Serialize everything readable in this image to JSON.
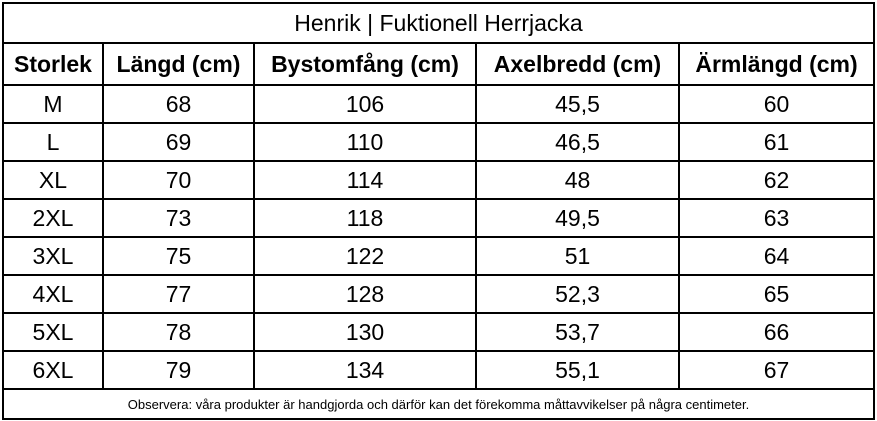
{
  "title": "Henrik | Fuktionell Herrjacka",
  "table": {
    "header": [
      "Storlek",
      "Längd (cm)",
      "Bystomfång (cm)",
      "Axelbredd (cm)",
      "Ärmlängd (cm)"
    ],
    "rows": [
      [
        "M",
        "68",
        "106",
        "45,5",
        "60"
      ],
      [
        "L",
        "69",
        "110",
        "46,5",
        "61"
      ],
      [
        "XL",
        "70",
        "114",
        "48",
        "62"
      ],
      [
        "2XL",
        "73",
        "118",
        "49,5",
        "63"
      ],
      [
        "3XL",
        "75",
        "122",
        "51",
        "64"
      ],
      [
        "4XL",
        "77",
        "128",
        "52,3",
        "65"
      ],
      [
        "5XL",
        "78",
        "130",
        "53,7",
        "66"
      ],
      [
        "6XL",
        "79",
        "134",
        "55,1",
        "67"
      ]
    ]
  },
  "note": "Observera: våra produkter är handgjorda och därför kan det förekomma måttavvikelser på några centimeter."
}
